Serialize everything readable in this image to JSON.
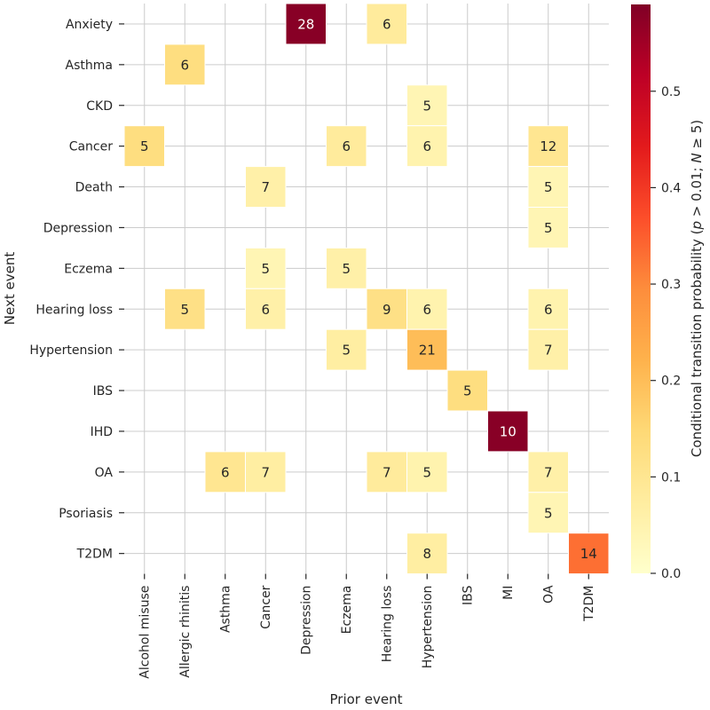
{
  "chart_data": {
    "type": "heatmap",
    "xlabel": "Prior event",
    "ylabel": "Next event",
    "x_categories": [
      "Alcohol misuse",
      "Allergic rhinitis",
      "Asthma",
      "Cancer",
      "Depression",
      "Eczema",
      "Hearing loss",
      "Hypertension",
      "IBS",
      "MI",
      "OA",
      "T2DM"
    ],
    "y_categories": [
      "Anxiety",
      "Asthma",
      "CKD",
      "Cancer",
      "Death",
      "Depression",
      "Eczema",
      "Hearing loss",
      "Hypertension",
      "IBS",
      "IHD",
      "OA",
      "Psoriasis",
      "T2DM"
    ],
    "cells": [
      {
        "x": "Depression",
        "y": "Anxiety",
        "label": "28",
        "value": 0.58
      },
      {
        "x": "Hearing loss",
        "y": "Anxiety",
        "label": "6",
        "value": 0.08
      },
      {
        "x": "Allergic rhinitis",
        "y": "Asthma",
        "label": "6",
        "value": 0.13
      },
      {
        "x": "Hypertension",
        "y": "CKD",
        "label": "5",
        "value": 0.04
      },
      {
        "x": "Alcohol misuse",
        "y": "Cancer",
        "label": "5",
        "value": 0.13
      },
      {
        "x": "Eczema",
        "y": "Cancer",
        "label": "6",
        "value": 0.08
      },
      {
        "x": "Hypertension",
        "y": "Cancer",
        "label": "6",
        "value": 0.05
      },
      {
        "x": "OA",
        "y": "Cancer",
        "label": "12",
        "value": 0.1
      },
      {
        "x": "Cancer",
        "y": "Death",
        "label": "7",
        "value": 0.06
      },
      {
        "x": "OA",
        "y": "Death",
        "label": "5",
        "value": 0.04
      },
      {
        "x": "OA",
        "y": "Depression",
        "label": "5",
        "value": 0.04
      },
      {
        "x": "Cancer",
        "y": "Eczema",
        "label": "5",
        "value": 0.04
      },
      {
        "x": "Eczema",
        "y": "Eczema",
        "label": "5",
        "value": 0.06
      },
      {
        "x": "Allergic rhinitis",
        "y": "Hearing loss",
        "label": "5",
        "value": 0.12
      },
      {
        "x": "Cancer",
        "y": "Hearing loss",
        "label": "6",
        "value": 0.06
      },
      {
        "x": "Hearing loss",
        "y": "Hearing loss",
        "label": "9",
        "value": 0.12
      },
      {
        "x": "Hypertension",
        "y": "Hearing loss",
        "label": "6",
        "value": 0.05
      },
      {
        "x": "OA",
        "y": "Hearing loss",
        "label": "6",
        "value": 0.05
      },
      {
        "x": "Eczema",
        "y": "Hypertension",
        "label": "5",
        "value": 0.07
      },
      {
        "x": "Hypertension",
        "y": "Hypertension",
        "label": "21",
        "value": 0.2
      },
      {
        "x": "OA",
        "y": "Hypertension",
        "label": "7",
        "value": 0.06
      },
      {
        "x": "IBS",
        "y": "IBS",
        "label": "5",
        "value": 0.13
      },
      {
        "x": "MI",
        "y": "IHD",
        "label": "10",
        "value": 0.58
      },
      {
        "x": "Asthma",
        "y": "OA",
        "label": "6",
        "value": 0.1
      },
      {
        "x": "Cancer",
        "y": "OA",
        "label": "7",
        "value": 0.07
      },
      {
        "x": "Hearing loss",
        "y": "OA",
        "label": "7",
        "value": 0.08
      },
      {
        "x": "Hypertension",
        "y": "OA",
        "label": "5",
        "value": 0.05
      },
      {
        "x": "OA",
        "y": "OA",
        "label": "7",
        "value": 0.06
      },
      {
        "x": "OA",
        "y": "Psoriasis",
        "label": "5",
        "value": 0.04
      },
      {
        "x": "Hypertension",
        "y": "T2DM",
        "label": "8",
        "value": 0.07
      },
      {
        "x": "T2DM",
        "y": "T2DM",
        "label": "14",
        "value": 0.33
      }
    ],
    "colorbar": {
      "label_parts": [
        "Conditional transition probability (",
        "p",
        " > 0.01; ",
        "N",
        " ≥ 5)"
      ],
      "range": [
        0,
        0.59
      ],
      "ticks": [
        0.0,
        0.1,
        0.2,
        0.3,
        0.4,
        0.5
      ],
      "tick_labels": [
        "0.0",
        "0.1",
        "0.2",
        "0.3",
        "0.4",
        "0.5"
      ],
      "colormap": "YlOrRd",
      "colormap_stops": [
        "#ffffcc",
        "#ffeda0",
        "#fed976",
        "#feb24c",
        "#fd8d3c",
        "#fc4e2a",
        "#e31a1c",
        "#bd0026",
        "#800026"
      ]
    },
    "grid": true,
    "grid_color": "#cccccc"
  }
}
